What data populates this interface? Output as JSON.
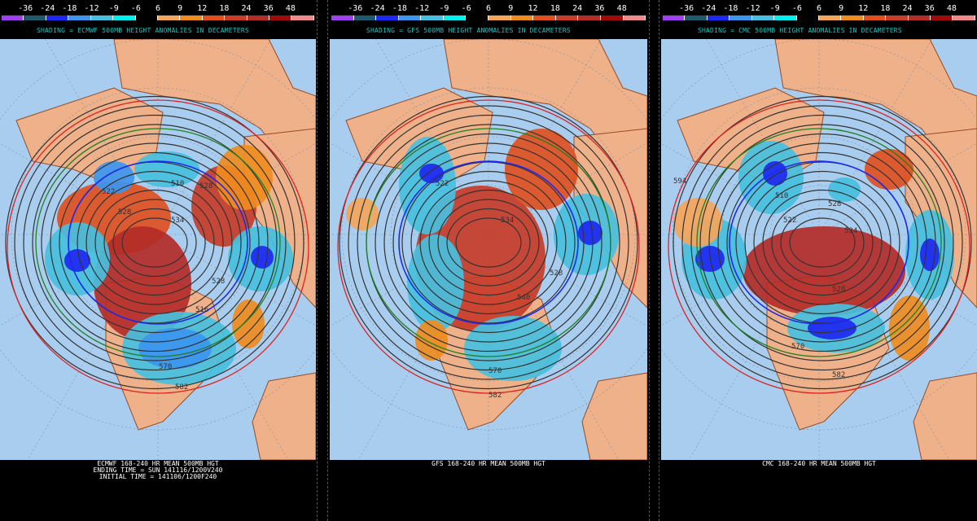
{
  "colorbar": {
    "labels": [
      "-36",
      "-24",
      "-18",
      "-12",
      "-9",
      "-6",
      "6",
      "9",
      "12",
      "18",
      "24",
      "36",
      "48"
    ],
    "colors": [
      "#a040f0",
      "#1e5a6e",
      "#1e28f0",
      "#3c96f0",
      "#46c0e0",
      "#00f0f0",
      "#000000",
      "#f5a55a",
      "#f08c1e",
      "#e0501e",
      "#c83c28",
      "#b42d28",
      "#a00a0a",
      "#f08a8a"
    ]
  },
  "map_colors": {
    "ocean": "#a9cdef",
    "land": "#eeb189",
    "coast": "#9a4a20"
  },
  "panels": [
    {
      "model": "ECMWF",
      "shading_title": "SHADING = ECMWF 500MB HEIGHT ANOMALIES IN DECAMETERS",
      "footer": [
        "ECMWF 168-240 HR MEAN 500MB HGT",
        "ENDING TIME = SUN 141116/1200V240",
        "INITIAL TIME = 141106/1200F240"
      ],
      "contour_labels": [
        "522",
        "510",
        "528",
        "528",
        "534",
        "528",
        "516",
        "570",
        "582"
      ]
    },
    {
      "model": "GFS",
      "shading_title": "SHADING = GFS 500MB HEIGHT ANOMALIES IN DECAMETERS",
      "footer": [
        "GFS 168-240 HR MEAN 500MB HGT"
      ],
      "contour_labels": [
        "522",
        "534",
        "528",
        "540",
        "570",
        "582"
      ]
    },
    {
      "model": "CMC",
      "shading_title": "SHADING = CMC 500MB HEIGHT ANOMALIES IN DECAMETERS",
      "footer": [
        "CMC 168-240 HR MEAN 500MB HGT"
      ],
      "contour_labels": [
        "594",
        "510",
        "528",
        "522",
        "534",
        "528",
        "570",
        "582"
      ]
    }
  ]
}
